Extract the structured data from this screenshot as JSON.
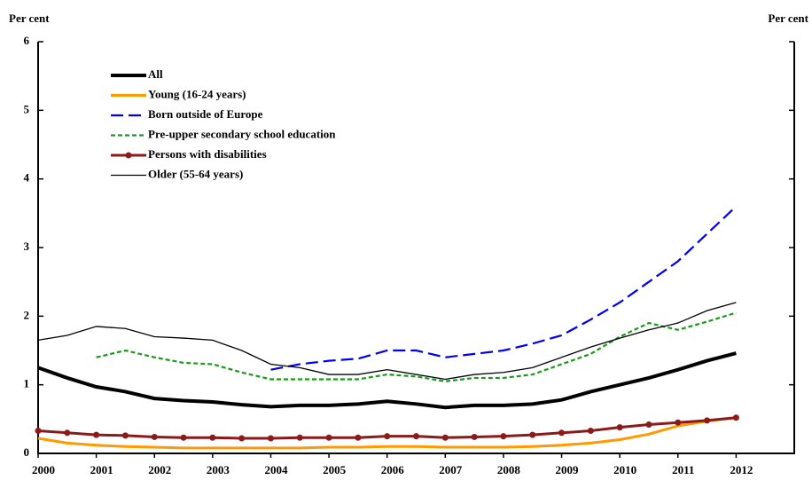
{
  "chart_data": {
    "type": "line",
    "ylabel": "Per cent",
    "y2label": "Per cent",
    "x": [
      2000,
      2000.5,
      2001,
      2001.5,
      2002,
      2002.5,
      2003,
      2003.5,
      2004,
      2004.5,
      2005,
      2005.5,
      2006,
      2006.5,
      2007,
      2007.5,
      2008,
      2008.5,
      2009,
      2009.5,
      2010,
      2010.5,
      2011,
      2011.5,
      2012
    ],
    "xlim": [
      2000,
      2013
    ],
    "xticks": [
      2000,
      2001,
      2002,
      2003,
      2004,
      2005,
      2006,
      2007,
      2008,
      2009,
      2010,
      2011,
      2012
    ],
    "ylim": [
      0,
      6
    ],
    "yticks": [
      0,
      1,
      2,
      3,
      4,
      5,
      6
    ],
    "legend": "upper left",
    "series": [
      {
        "name": "All",
        "color": "#000000",
        "linestyle": "solid",
        "values": [
          1.25,
          1.1,
          0.97,
          0.9,
          0.8,
          0.77,
          0.75,
          0.71,
          0.68,
          0.7,
          0.7,
          0.72,
          0.76,
          0.72,
          0.67,
          0.7,
          0.7,
          0.72,
          0.78,
          0.9,
          1.0,
          1.1,
          1.22,
          1.35,
          1.46
        ]
      },
      {
        "name": "Young  (16-24 years)",
        "color": "#ff9900",
        "linestyle": "solid",
        "values": [
          0.22,
          0.15,
          0.12,
          0.1,
          0.09,
          0.08,
          0.08,
          0.08,
          0.08,
          0.08,
          0.09,
          0.09,
          0.1,
          0.1,
          0.09,
          0.09,
          0.09,
          0.1,
          0.12,
          0.15,
          0.2,
          0.28,
          0.4,
          0.47,
          0.52
        ]
      },
      {
        "name": "Born outside of Europe",
        "color": "#0000ee",
        "linestyle": "dashed",
        "values": [
          null,
          null,
          null,
          null,
          null,
          null,
          null,
          null,
          1.22,
          1.3,
          1.35,
          1.38,
          1.5,
          1.5,
          1.4,
          1.45,
          1.5,
          1.6,
          1.72,
          1.95,
          2.2,
          2.5,
          2.8,
          3.2,
          3.6
        ]
      },
      {
        "name": "Pre-upper secondary school education",
        "color": "#1a9a1a",
        "linestyle": "dotted",
        "values": [
          null,
          null,
          1.4,
          1.5,
          1.4,
          1.32,
          1.3,
          1.18,
          1.08,
          1.08,
          1.08,
          1.08,
          1.15,
          1.12,
          1.05,
          1.1,
          1.1,
          1.15,
          1.3,
          1.45,
          1.7,
          1.9,
          1.8,
          1.92,
          2.05
        ]
      },
      {
        "name": "Persons with disabilities",
        "color": "#8b1a1a",
        "linestyle": "solid",
        "marker": "o",
        "values": [
          0.33,
          0.3,
          0.27,
          0.26,
          0.24,
          0.23,
          0.23,
          0.22,
          0.22,
          0.23,
          0.23,
          0.23,
          0.25,
          0.25,
          0.23,
          0.24,
          0.25,
          0.27,
          0.3,
          0.33,
          0.38,
          0.42,
          0.45,
          0.48,
          0.52
        ]
      },
      {
        "name": "Older (55-64 years)",
        "color": "#000000",
        "linestyle": "solid",
        "values": [
          1.65,
          1.72,
          1.85,
          1.82,
          1.7,
          1.68,
          1.65,
          1.5,
          1.3,
          1.25,
          1.15,
          1.15,
          1.22,
          1.15,
          1.08,
          1.15,
          1.18,
          1.25,
          1.4,
          1.55,
          1.68,
          1.8,
          1.9,
          2.08,
          2.2
        ]
      }
    ]
  }
}
